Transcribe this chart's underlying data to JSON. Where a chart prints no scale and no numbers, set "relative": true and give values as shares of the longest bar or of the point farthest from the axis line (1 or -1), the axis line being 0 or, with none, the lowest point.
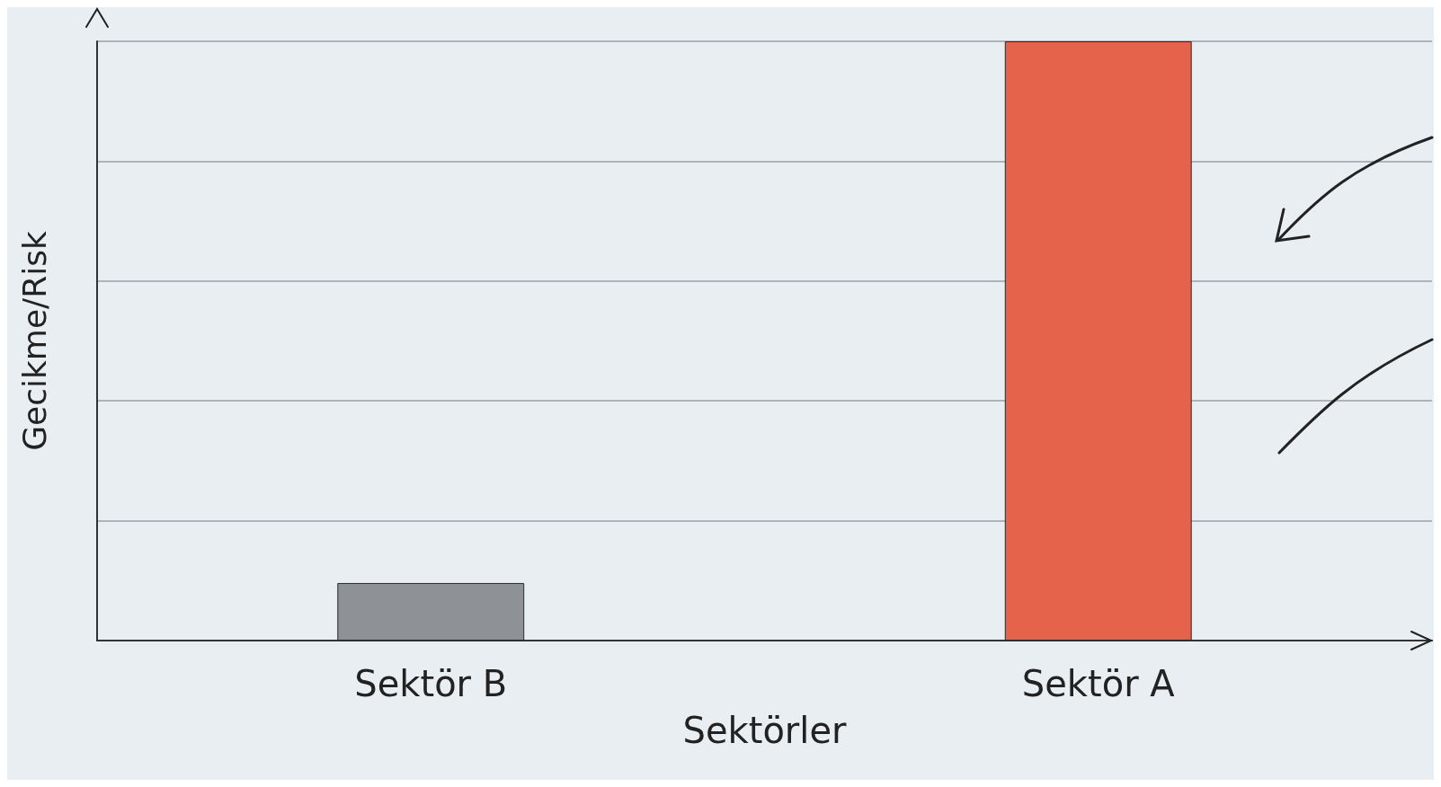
{
  "chart_data": {
    "type": "bar",
    "relative": true,
    "xlabel": "Sektörler",
    "ylabel": "Gecikme/Risk",
    "categories": [
      "Sektör B",
      "Sektör A"
    ],
    "values": [
      0.096,
      1
    ],
    "colors": [
      "#8e9196",
      "#e5634a"
    ],
    "grid": "y",
    "tick_labels": "x"
  }
}
